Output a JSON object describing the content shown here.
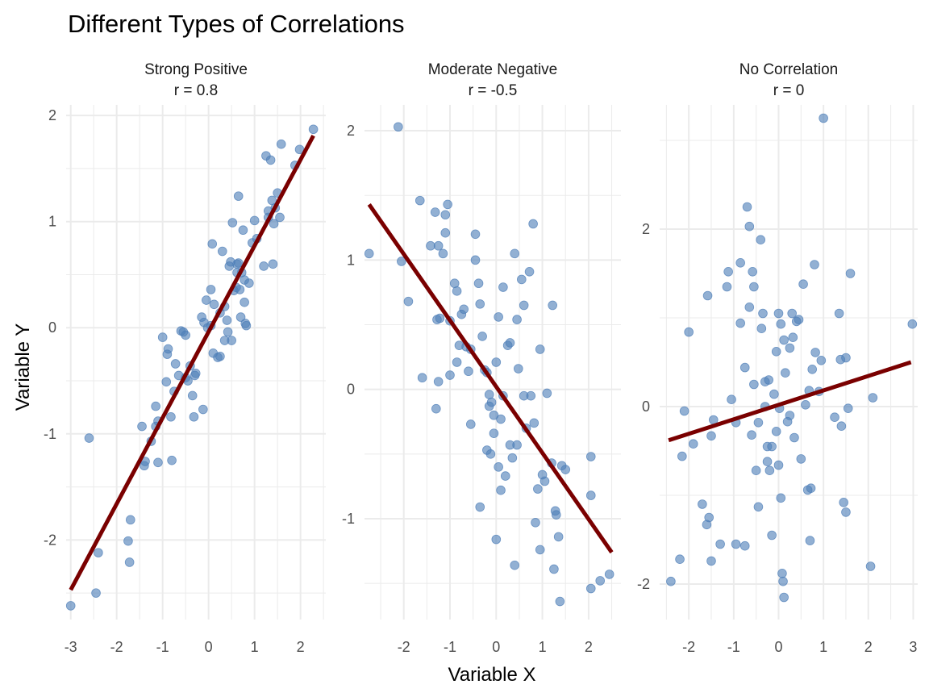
{
  "chart_data": {
    "type": "scatter",
    "title": "Different Types of Correlations",
    "xlabel": "Variable X",
    "ylabel": "Variable Y",
    "grid": true,
    "colors": {
      "points": "#4f7fb8",
      "fit_line": "#7a0000",
      "grid": "#ebebeb",
      "text": "#4d4d4d"
    },
    "panels": [
      {
        "strip_title": "Strong Positive",
        "strip_subtitle": "r = 0.8",
        "xlim": [
          -3.1,
          2.55
        ],
        "ylim": [
          -2.75,
          2.1
        ],
        "xticks": [
          -3,
          -2,
          -1,
          0,
          1,
          2
        ],
        "yticks": [
          -2,
          -1,
          0,
          1,
          2
        ],
        "fit": {
          "x": [
            -3.0,
            2.28
          ],
          "y": [
            -2.47,
            1.81
          ]
        },
        "points": [
          [
            -3.0,
            -2.62
          ],
          [
            -2.6,
            -1.04
          ],
          [
            -2.45,
            -2.5
          ],
          [
            -2.4,
            -2.12
          ],
          [
            -1.75,
            -2.01
          ],
          [
            -1.72,
            -2.21
          ],
          [
            -1.7,
            -1.81
          ],
          [
            -1.45,
            -0.93
          ],
          [
            -1.4,
            -1.3
          ],
          [
            -1.38,
            -1.26
          ],
          [
            -1.25,
            -1.07
          ],
          [
            -1.15,
            -0.93
          ],
          [
            -1.1,
            -1.27
          ],
          [
            -1.15,
            -0.74
          ],
          [
            -1.1,
            -0.88
          ],
          [
            -1.0,
            -0.09
          ],
          [
            -0.9,
            -0.25
          ],
          [
            -0.88,
            -0.2
          ],
          [
            -0.92,
            -0.51
          ],
          [
            -0.8,
            -1.25
          ],
          [
            -0.82,
            -0.84
          ],
          [
            -0.72,
            -0.34
          ],
          [
            -0.75,
            -0.6
          ],
          [
            -0.65,
            -0.45
          ],
          [
            -0.6,
            -0.03
          ],
          [
            -0.55,
            -0.04
          ],
          [
            -0.5,
            -0.07
          ],
          [
            -0.45,
            -0.5
          ],
          [
            -0.4,
            -0.36
          ],
          [
            -0.35,
            -0.64
          ],
          [
            -0.3,
            -0.45
          ],
          [
            -0.28,
            -0.43
          ],
          [
            -0.32,
            -0.84
          ],
          [
            -0.15,
            0.1
          ],
          [
            -0.1,
            0.05
          ],
          [
            -0.12,
            -0.77
          ],
          [
            -0.05,
            0.26
          ],
          [
            -0.02,
            0.0
          ],
          [
            0.05,
            0.02
          ],
          [
            0.08,
            0.79
          ],
          [
            0.1,
            -0.24
          ],
          [
            0.12,
            0.22
          ],
          [
            0.2,
            -0.28
          ],
          [
            0.25,
            -0.27
          ],
          [
            0.25,
            0.14
          ],
          [
            0.3,
            0.72
          ],
          [
            0.35,
            0.2
          ],
          [
            0.35,
            -0.12
          ],
          [
            0.4,
            0.07
          ],
          [
            0.45,
            0.58
          ],
          [
            0.48,
            0.62
          ],
          [
            0.5,
            -0.12
          ],
          [
            0.52,
            0.99
          ],
          [
            0.55,
            0.35
          ],
          [
            0.6,
            0.38
          ],
          [
            0.62,
            0.52
          ],
          [
            0.65,
            1.24
          ],
          [
            0.65,
            0.61
          ],
          [
            0.7,
            0.1
          ],
          [
            0.68,
            0.36
          ],
          [
            0.72,
            0.52
          ],
          [
            0.75,
            0.92
          ],
          [
            0.78,
            0.45
          ],
          [
            0.8,
            0.04
          ],
          [
            0.82,
            0.02
          ],
          [
            0.88,
            0.42
          ],
          [
            0.95,
            0.8
          ],
          [
            1.0,
            1.01
          ],
          [
            1.05,
            0.84
          ],
          [
            1.2,
            0.58
          ],
          [
            1.25,
            1.62
          ],
          [
            1.3,
            1.04
          ],
          [
            1.35,
            1.58
          ],
          [
            1.38,
            1.2
          ],
          [
            1.4,
            0.6
          ],
          [
            1.42,
            0.98
          ],
          [
            1.45,
            1.13
          ],
          [
            1.5,
            1.27
          ],
          [
            1.55,
            1.04
          ],
          [
            1.58,
            1.73
          ],
          [
            1.88,
            1.53
          ],
          [
            1.98,
            1.68
          ],
          [
            2.28,
            1.87
          ],
          [
            1.3,
            1.1
          ],
          [
            0.78,
            0.24
          ],
          [
            0.42,
            -0.04
          ],
          [
            -0.5,
            -0.47
          ],
          [
            0.05,
            0.36
          ],
          [
            0.62,
            0.6
          ]
        ]
      },
      {
        "strip_title": "Moderate Negative",
        "strip_subtitle": "r = -0.5",
        "xlim": [
          -2.85,
          2.7
        ],
        "ylim": [
          -1.78,
          2.2
        ],
        "xticks": [
          -2,
          -1,
          0,
          1,
          2
        ],
        "yticks": [
          -1,
          0,
          1,
          2
        ],
        "fit": {
          "x": [
            -2.75,
            2.5
          ],
          "y": [
            1.43,
            -1.26
          ]
        },
        "points": [
          [
            -2.75,
            1.05
          ],
          [
            -2.12,
            2.03
          ],
          [
            -2.05,
            0.99
          ],
          [
            -1.9,
            0.68
          ],
          [
            -1.6,
            0.09
          ],
          [
            -1.65,
            1.46
          ],
          [
            -1.42,
            1.11
          ],
          [
            -1.32,
            1.37
          ],
          [
            -1.28,
            0.54
          ],
          [
            -1.22,
            0.55
          ],
          [
            -1.25,
            1.11
          ],
          [
            -1.15,
            1.05
          ],
          [
            -1.1,
            1.21
          ],
          [
            -1.1,
            1.35
          ],
          [
            -1.05,
            1.43
          ],
          [
            -1.0,
            0.11
          ],
          [
            -0.9,
            0.82
          ],
          [
            -0.85,
            0.76
          ],
          [
            -0.8,
            0.34
          ],
          [
            -0.75,
            0.58
          ],
          [
            -0.7,
            0.62
          ],
          [
            -0.65,
            0.33
          ],
          [
            -0.6,
            0.14
          ],
          [
            -0.55,
            0.31
          ],
          [
            -0.45,
            1.2
          ],
          [
            -0.45,
            1.0
          ],
          [
            -0.38,
            0.82
          ],
          [
            -0.35,
            0.66
          ],
          [
            -0.3,
            0.41
          ],
          [
            -0.25,
            0.15
          ],
          [
            -0.2,
            0.13
          ],
          [
            -0.15,
            -0.13
          ],
          [
            -0.12,
            -0.5
          ],
          [
            -0.1,
            -0.1
          ],
          [
            -0.05,
            -0.2
          ],
          [
            0.0,
            0.21
          ],
          [
            0.05,
            0.56
          ],
          [
            0.1,
            -0.23
          ],
          [
            0.15,
            0.79
          ],
          [
            0.2,
            -0.67
          ],
          [
            0.25,
            0.34
          ],
          [
            0.3,
            0.36
          ],
          [
            0.35,
            -0.53
          ],
          [
            0.4,
            1.05
          ],
          [
            0.45,
            0.54
          ],
          [
            0.48,
            0.16
          ],
          [
            0.55,
            0.85
          ],
          [
            0.6,
            0.65
          ],
          [
            0.65,
            -0.3
          ],
          [
            0.72,
            0.91
          ],
          [
            0.75,
            -0.05
          ],
          [
            0.8,
            1.28
          ],
          [
            0.82,
            -0.26
          ],
          [
            0.9,
            -0.77
          ],
          [
            0.95,
            0.31
          ],
          [
            1.05,
            -0.71
          ],
          [
            1.1,
            -0.03
          ],
          [
            1.2,
            -0.57
          ],
          [
            1.22,
            0.65
          ],
          [
            1.25,
            -1.39
          ],
          [
            1.28,
            -0.94
          ],
          [
            1.3,
            -0.97
          ],
          [
            1.35,
            -1.14
          ],
          [
            1.38,
            -1.64
          ],
          [
            1.42,
            -0.59
          ],
          [
            1.5,
            -0.62
          ],
          [
            2.05,
            -0.52
          ],
          [
            2.05,
            -0.82
          ],
          [
            2.05,
            -1.54
          ],
          [
            2.25,
            -1.48
          ],
          [
            2.45,
            -1.43
          ],
          [
            1.0,
            -0.66
          ],
          [
            0.95,
            -1.24
          ],
          [
            0.4,
            -1.36
          ],
          [
            0.0,
            -1.16
          ],
          [
            -0.35,
            -0.91
          ],
          [
            -0.55,
            -0.27
          ],
          [
            -1.3,
            -0.15
          ],
          [
            -1.25,
            0.06
          ],
          [
            -1.0,
            0.53
          ],
          [
            -0.85,
            0.21
          ],
          [
            -0.15,
            -0.04
          ],
          [
            -0.05,
            -0.34
          ],
          [
            0.05,
            -0.6
          ],
          [
            0.3,
            -0.43
          ],
          [
            -0.2,
            -0.47
          ],
          [
            0.6,
            -0.05
          ],
          [
            0.85,
            -1.03
          ],
          [
            0.15,
            -0.05
          ],
          [
            0.45,
            -0.43
          ],
          [
            0.1,
            -0.78
          ]
        ]
      },
      {
        "strip_title": "No Correlation",
        "strip_subtitle": "r = 0",
        "xlim": [
          -2.65,
          3.1
        ],
        "ylim": [
          -2.4,
          3.4
        ],
        "xticks": [
          -2,
          -1,
          0,
          1,
          2,
          3
        ],
        "yticks": [
          -2,
          0,
          2
        ],
        "fit": {
          "x": [
            -2.45,
            2.95
          ],
          "y": [
            -0.38,
            0.5
          ]
        },
        "points": [
          [
            -2.4,
            -1.97
          ],
          [
            -2.2,
            -1.72
          ],
          [
            -2.15,
            -0.56
          ],
          [
            -2.1,
            -0.05
          ],
          [
            -2.0,
            0.84
          ],
          [
            -1.9,
            -0.42
          ],
          [
            -1.7,
            -1.1
          ],
          [
            -1.6,
            -1.33
          ],
          [
            -1.58,
            1.25
          ],
          [
            -1.55,
            -1.25
          ],
          [
            -1.5,
            -1.74
          ],
          [
            -1.5,
            -0.33
          ],
          [
            -1.45,
            -0.15
          ],
          [
            -1.3,
            -1.55
          ],
          [
            -1.15,
            1.35
          ],
          [
            -1.12,
            1.52
          ],
          [
            -1.05,
            0.08
          ],
          [
            -0.95,
            -0.18
          ],
          [
            -0.95,
            -1.55
          ],
          [
            -0.85,
            0.94
          ],
          [
            -0.85,
            1.62
          ],
          [
            -0.75,
            -1.57
          ],
          [
            -0.75,
            0.44
          ],
          [
            -0.7,
            2.25
          ],
          [
            -0.65,
            2.03
          ],
          [
            -0.65,
            1.12
          ],
          [
            -0.6,
            -0.32
          ],
          [
            -0.58,
            1.52
          ],
          [
            -0.55,
            1.35
          ],
          [
            -0.55,
            0.25
          ],
          [
            -0.5,
            -0.72
          ],
          [
            -0.45,
            -1.13
          ],
          [
            -0.45,
            -0.18
          ],
          [
            -0.4,
            1.88
          ],
          [
            -0.38,
            0.88
          ],
          [
            -0.35,
            1.05
          ],
          [
            -0.3,
            0.28
          ],
          [
            -0.25,
            -0.45
          ],
          [
            -0.25,
            -0.62
          ],
          [
            -0.22,
            0.3
          ],
          [
            -0.2,
            -0.72
          ],
          [
            -0.15,
            -0.45
          ],
          [
            -0.1,
            0.14
          ],
          [
            -0.05,
            0.62
          ],
          [
            -0.05,
            -0.28
          ],
          [
            0.0,
            1.05
          ],
          [
            0.0,
            -0.66
          ],
          [
            0.02,
            -0.02
          ],
          [
            0.05,
            -1.03
          ],
          [
            0.05,
            0.93
          ],
          [
            0.08,
            -1.88
          ],
          [
            0.1,
            -1.97
          ],
          [
            0.12,
            0.75
          ],
          [
            0.15,
            0.38
          ],
          [
            0.2,
            -0.17
          ],
          [
            0.25,
            0.66
          ],
          [
            0.3,
            1.05
          ],
          [
            0.32,
            0.78
          ],
          [
            0.35,
            -0.35
          ],
          [
            0.4,
            0.96
          ],
          [
            0.45,
            0.98
          ],
          [
            0.5,
            -0.59
          ],
          [
            0.55,
            1.38
          ],
          [
            0.6,
            0.02
          ],
          [
            0.65,
            -0.94
          ],
          [
            0.68,
            0.18
          ],
          [
            0.7,
            -1.51
          ],
          [
            0.75,
            0.42
          ],
          [
            0.8,
            1.6
          ],
          [
            0.82,
            0.61
          ],
          [
            0.9,
            0.17
          ],
          [
            0.95,
            0.52
          ],
          [
            1.0,
            3.25
          ],
          [
            1.25,
            -0.12
          ],
          [
            1.35,
            1.05
          ],
          [
            1.38,
            0.53
          ],
          [
            1.4,
            -0.22
          ],
          [
            1.45,
            -1.08
          ],
          [
            1.5,
            0.55
          ],
          [
            1.5,
            -1.19
          ],
          [
            1.55,
            -0.02
          ],
          [
            1.6,
            1.5
          ],
          [
            2.05,
            -1.8
          ],
          [
            2.1,
            0.1
          ],
          [
            2.98,
            0.93
          ],
          [
            0.12,
            -2.15
          ],
          [
            -0.15,
            -1.45
          ],
          [
            0.72,
            -0.92
          ],
          [
            -0.3,
            0.0
          ],
          [
            0.25,
            -0.1
          ]
        ]
      }
    ]
  }
}
